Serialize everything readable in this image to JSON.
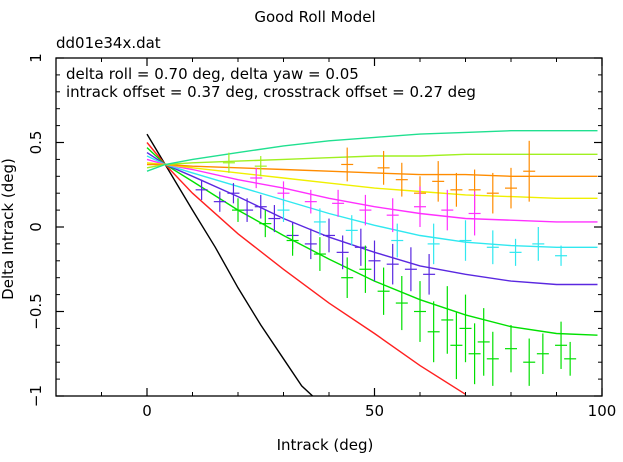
{
  "chart_data": {
    "type": "line",
    "title": "Good Roll Model",
    "file_label": "dd01e34x.dat",
    "annotation_lines": [
      "delta roll = 0.70 deg, delta yaw = 0.05",
      "intrack offset = 0.37 deg, crosstrack offset = 0.27 deg"
    ],
    "xlabel": "Intrack (deg)",
    "ylabel": "Delta Intrack (deg)",
    "xlim": [
      -20,
      100
    ],
    "ylim": [
      -1,
      1
    ],
    "xticks": [
      0,
      50,
      100
    ],
    "xtick_labels": [
      "0",
      "50",
      "100"
    ],
    "yticks": [
      -1,
      -0.5,
      0,
      0.5,
      1
    ],
    "ytick_labels": [
      "−1",
      "−0.5",
      "0",
      "0.5",
      "1"
    ],
    "grid": false,
    "curves": [
      {
        "name": "model-black",
        "color": "#000000",
        "x": [
          0,
          4,
          10,
          15,
          20,
          25,
          30,
          34,
          36.4
        ],
        "y": [
          0.55,
          0.37,
          0.1,
          -0.12,
          -0.36,
          -0.58,
          -0.78,
          -0.94,
          -1.0
        ]
      },
      {
        "name": "model-red",
        "color": "#ff2020",
        "x": [
          0,
          4,
          10,
          20,
          30,
          40,
          50,
          60,
          70
        ],
        "y": [
          0.5,
          0.37,
          0.2,
          -0.04,
          -0.25,
          -0.45,
          -0.63,
          -0.82,
          -0.99
        ]
      },
      {
        "name": "model-green",
        "color": "#00e000",
        "x": [
          0,
          4,
          10,
          20,
          30,
          40,
          50,
          60,
          70,
          80,
          90,
          99
        ],
        "y": [
          0.47,
          0.37,
          0.27,
          0.1,
          -0.05,
          -0.19,
          -0.32,
          -0.43,
          -0.52,
          -0.59,
          -0.63,
          -0.64
        ]
      },
      {
        "name": "model-blue",
        "color": "#5a28e0",
        "x": [
          0,
          4,
          10,
          20,
          30,
          40,
          50,
          60,
          70,
          80,
          90,
          99
        ],
        "y": [
          0.44,
          0.37,
          0.3,
          0.18,
          0.05,
          -0.06,
          -0.15,
          -0.23,
          -0.28,
          -0.32,
          -0.34,
          -0.34
        ]
      },
      {
        "name": "model-cyan",
        "color": "#30e8f0",
        "x": [
          0,
          4,
          10,
          20,
          30,
          40,
          50,
          60,
          70,
          80,
          90,
          99
        ],
        "y": [
          0.42,
          0.37,
          0.32,
          0.24,
          0.16,
          0.08,
          0.01,
          -0.05,
          -0.09,
          -0.11,
          -0.12,
          -0.12
        ]
      },
      {
        "name": "model-magenta",
        "color": "#ff30ff",
        "x": [
          0,
          4,
          10,
          20,
          30,
          40,
          50,
          60,
          70,
          80,
          90,
          99
        ],
        "y": [
          0.4,
          0.37,
          0.34,
          0.28,
          0.23,
          0.17,
          0.12,
          0.08,
          0.05,
          0.04,
          0.03,
          0.03
        ]
      },
      {
        "name": "model-yellow",
        "color": "#f0f000",
        "x": [
          0,
          4,
          10,
          20,
          30,
          40,
          50,
          60,
          70,
          80,
          90,
          99
        ],
        "y": [
          0.38,
          0.37,
          0.35,
          0.32,
          0.29,
          0.26,
          0.23,
          0.21,
          0.19,
          0.18,
          0.17,
          0.17
        ]
      },
      {
        "name": "model-orange",
        "color": "#ff8c00",
        "x": [
          0,
          4,
          10,
          20,
          30,
          40,
          50,
          60,
          70,
          80,
          90,
          99
        ],
        "y": [
          0.37,
          0.37,
          0.36,
          0.35,
          0.34,
          0.33,
          0.32,
          0.31,
          0.31,
          0.3,
          0.3,
          0.3
        ]
      },
      {
        "name": "model-lightgreen",
        "color": "#a0f020",
        "x": [
          0,
          4,
          10,
          20,
          30,
          40,
          50,
          60,
          70,
          80,
          90,
          99
        ],
        "y": [
          0.35,
          0.37,
          0.38,
          0.39,
          0.4,
          0.41,
          0.42,
          0.42,
          0.43,
          0.43,
          0.43,
          0.43
        ]
      },
      {
        "name": "model-seagreen",
        "color": "#20e090",
        "x": [
          0,
          4,
          10,
          20,
          30,
          40,
          50,
          60,
          70,
          80,
          90,
          99
        ],
        "y": [
          0.33,
          0.37,
          0.4,
          0.44,
          0.48,
          0.51,
          0.53,
          0.55,
          0.56,
          0.57,
          0.57,
          0.57
        ]
      }
    ],
    "points": [
      {
        "color": "#ff8c00",
        "x": 44,
        "y": 0.37,
        "err": 0.1
      },
      {
        "color": "#ff8c00",
        "x": 52,
        "y": 0.35,
        "err": 0.1
      },
      {
        "color": "#ff8c00",
        "x": 56,
        "y": 0.28,
        "err": 0.1
      },
      {
        "color": "#ff8c00",
        "x": 60,
        "y": 0.2,
        "err": 0.1
      },
      {
        "color": "#ff8c00",
        "x": 64,
        "y": 0.27,
        "err": 0.12
      },
      {
        "color": "#ff8c00",
        "x": 68,
        "y": 0.22,
        "err": 0.1
      },
      {
        "color": "#ff8c00",
        "x": 72,
        "y": 0.22,
        "err": 0.12
      },
      {
        "color": "#ff8c00",
        "x": 76,
        "y": 0.2,
        "err": 0.12
      },
      {
        "color": "#ff8c00",
        "x": 80,
        "y": 0.23,
        "err": 0.12
      },
      {
        "color": "#ff8c00",
        "x": 84,
        "y": 0.33,
        "err": 0.18
      },
      {
        "color": "#a0f020",
        "x": 18,
        "y": 0.38,
        "err": 0.06
      },
      {
        "color": "#a0f020",
        "x": 25,
        "y": 0.36,
        "err": 0.06
      },
      {
        "color": "#ff30ff",
        "x": 24,
        "y": 0.29,
        "err": 0.06
      },
      {
        "color": "#ff30ff",
        "x": 30,
        "y": 0.2,
        "err": 0.07
      },
      {
        "color": "#ff30ff",
        "x": 36,
        "y": 0.15,
        "err": 0.07
      },
      {
        "color": "#ff30ff",
        "x": 42,
        "y": 0.14,
        "err": 0.08
      },
      {
        "color": "#ff30ff",
        "x": 48,
        "y": 0.1,
        "err": 0.09
      },
      {
        "color": "#ff30ff",
        "x": 54,
        "y": 0.07,
        "err": 0.1
      },
      {
        "color": "#ff30ff",
        "x": 60,
        "y": 0.12,
        "err": 0.12
      },
      {
        "color": "#ff30ff",
        "x": 66,
        "y": 0.1,
        "err": 0.12
      },
      {
        "color": "#ff30ff",
        "x": 72,
        "y": 0.08,
        "err": 0.13
      },
      {
        "color": "#30e8f0",
        "x": 30,
        "y": 0.1,
        "err": 0.07
      },
      {
        "color": "#30e8f0",
        "x": 38,
        "y": 0.03,
        "err": 0.08
      },
      {
        "color": "#30e8f0",
        "x": 45,
        "y": -0.02,
        "err": 0.09
      },
      {
        "color": "#30e8f0",
        "x": 55,
        "y": -0.08,
        "err": 0.1
      },
      {
        "color": "#30e8f0",
        "x": 63,
        "y": -0.1,
        "err": 0.12
      },
      {
        "color": "#30e8f0",
        "x": 70,
        "y": -0.08,
        "err": 0.12
      },
      {
        "color": "#30e8f0",
        "x": 76,
        "y": -0.12,
        "err": 0.1
      },
      {
        "color": "#30e8f0",
        "x": 81,
        "y": -0.15,
        "err": 0.08
      },
      {
        "color": "#30e8f0",
        "x": 86,
        "y": -0.1,
        "err": 0.1
      },
      {
        "color": "#30e8f0",
        "x": 91,
        "y": -0.17,
        "err": 0.06
      },
      {
        "color": "#5a28e0",
        "x": 12,
        "y": 0.22,
        "err": 0.06
      },
      {
        "color": "#5a28e0",
        "x": 16,
        "y": 0.15,
        "err": 0.06
      },
      {
        "color": "#5a28e0",
        "x": 19,
        "y": 0.2,
        "err": 0.06
      },
      {
        "color": "#5a28e0",
        "x": 22,
        "y": 0.1,
        "err": 0.07
      },
      {
        "color": "#5a28e0",
        "x": 25,
        "y": 0.12,
        "err": 0.07
      },
      {
        "color": "#5a28e0",
        "x": 28,
        "y": 0.05,
        "err": 0.08
      },
      {
        "color": "#5a28e0",
        "x": 32,
        "y": -0.05,
        "err": 0.08
      },
      {
        "color": "#5a28e0",
        "x": 36,
        "y": -0.1,
        "err": 0.09
      },
      {
        "color": "#5a28e0",
        "x": 40,
        "y": -0.05,
        "err": 0.1
      },
      {
        "color": "#5a28e0",
        "x": 43,
        "y": -0.15,
        "err": 0.1
      },
      {
        "color": "#5a28e0",
        "x": 47,
        "y": -0.12,
        "err": 0.11
      },
      {
        "color": "#5a28e0",
        "x": 50,
        "y": -0.2,
        "err": 0.12
      },
      {
        "color": "#5a28e0",
        "x": 54,
        "y": -0.22,
        "err": 0.12
      },
      {
        "color": "#5a28e0",
        "x": 58,
        "y": -0.25,
        "err": 0.13
      },
      {
        "color": "#5a28e0",
        "x": 62,
        "y": -0.28,
        "err": 0.12
      },
      {
        "color": "#00e000",
        "x": 20,
        "y": 0.1,
        "err": 0.07
      },
      {
        "color": "#00e000",
        "x": 26,
        "y": 0.02,
        "err": 0.08
      },
      {
        "color": "#00e000",
        "x": 32,
        "y": -0.08,
        "err": 0.09
      },
      {
        "color": "#00e000",
        "x": 38,
        "y": -0.16,
        "err": 0.1
      },
      {
        "color": "#00e000",
        "x": 44,
        "y": -0.3,
        "err": 0.12
      },
      {
        "color": "#00e000",
        "x": 48,
        "y": -0.25,
        "err": 0.14
      },
      {
        "color": "#00e000",
        "x": 52,
        "y": -0.38,
        "err": 0.14
      },
      {
        "color": "#00e000",
        "x": 56,
        "y": -0.45,
        "err": 0.16
      },
      {
        "color": "#00e000",
        "x": 60,
        "y": -0.5,
        "err": 0.18
      },
      {
        "color": "#00e000",
        "x": 63,
        "y": -0.62,
        "err": 0.18
      },
      {
        "color": "#00e000",
        "x": 66,
        "y": -0.55,
        "err": 0.2
      },
      {
        "color": "#00e000",
        "x": 68,
        "y": -0.7,
        "err": 0.2
      },
      {
        "color": "#00e000",
        "x": 70,
        "y": -0.6,
        "err": 0.2
      },
      {
        "color": "#00e000",
        "x": 72,
        "y": -0.75,
        "err": 0.18
      },
      {
        "color": "#00e000",
        "x": 74,
        "y": -0.68,
        "err": 0.2
      },
      {
        "color": "#00e000",
        "x": 76,
        "y": -0.78,
        "err": 0.16
      },
      {
        "color": "#00e000",
        "x": 80,
        "y": -0.72,
        "err": 0.14
      },
      {
        "color": "#00e000",
        "x": 84,
        "y": -0.8,
        "err": 0.14
      },
      {
        "color": "#00e000",
        "x": 87,
        "y": -0.75,
        "err": 0.12
      },
      {
        "color": "#00e000",
        "x": 91,
        "y": -0.7,
        "err": 0.14
      },
      {
        "color": "#00e000",
        "x": 93,
        "y": -0.78,
        "err": 0.1
      }
    ]
  }
}
